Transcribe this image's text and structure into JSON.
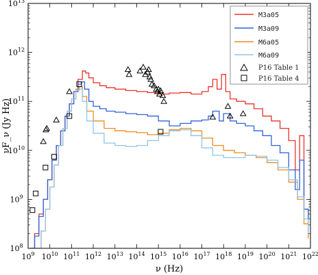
{
  "chart_data": {
    "type": "line",
    "xlabel": "ν (Hz)",
    "ylabel": "νF_ν (Jy Hz)",
    "xscale": "log",
    "yscale": "log",
    "xlim": [
      1000000000.0,
      1e+22
    ],
    "ylim": [
      100000000.0,
      10000000000000.0
    ],
    "x_tick_exponents": [
      9,
      10,
      11,
      12,
      13,
      14,
      15,
      16,
      17,
      18,
      19,
      20,
      21,
      22
    ],
    "y_tick_exponents": [
      8,
      9,
      10,
      11,
      12,
      13
    ],
    "legend_position": "top-right",
    "series": [
      {
        "name": "M3a05",
        "color": "#e8322b",
        "style": "step",
        "points": [
          [
            9.1,
            8.0
          ],
          [
            9.3,
            8.3
          ],
          [
            9.5,
            8.7
          ],
          [
            9.7,
            9.0
          ],
          [
            9.9,
            9.4
          ],
          [
            10.1,
            9.8
          ],
          [
            10.3,
            10.1
          ],
          [
            10.5,
            10.4
          ],
          [
            10.7,
            10.7
          ],
          [
            10.9,
            10.95
          ],
          [
            11.1,
            11.2
          ],
          [
            11.3,
            11.45
          ],
          [
            11.5,
            11.62
          ],
          [
            11.65,
            11.58
          ],
          [
            11.8,
            11.48
          ],
          [
            12.0,
            11.38
          ],
          [
            12.3,
            11.32
          ],
          [
            12.6,
            11.28
          ],
          [
            13.0,
            11.25
          ],
          [
            13.5,
            11.22
          ],
          [
            14.0,
            11.2
          ],
          [
            14.5,
            11.18
          ],
          [
            15.0,
            11.15
          ],
          [
            15.5,
            11.17
          ],
          [
            16.0,
            11.18
          ],
          [
            16.5,
            11.15
          ],
          [
            17.0,
            11.2
          ],
          [
            17.3,
            11.3
          ],
          [
            17.5,
            11.45
          ],
          [
            17.7,
            11.25
          ],
          [
            17.9,
            11.55
          ],
          [
            18.1,
            11.2
          ],
          [
            18.3,
            11.05
          ],
          [
            18.6,
            11.0
          ],
          [
            19.0,
            10.95
          ],
          [
            19.4,
            10.85
          ],
          [
            19.8,
            10.7
          ],
          [
            20.2,
            10.6
          ],
          [
            20.6,
            10.45
          ],
          [
            21.0,
            10.2
          ],
          [
            21.3,
            9.6
          ],
          [
            21.5,
            10.3
          ],
          [
            21.7,
            8.8
          ],
          [
            21.9,
            8.3
          ]
        ]
      },
      {
        "name": "M3a09",
        "color": "#2f62d8",
        "style": "step",
        "points": [
          [
            9.1,
            8.0
          ],
          [
            9.3,
            8.25
          ],
          [
            9.5,
            8.65
          ],
          [
            9.7,
            9.0
          ],
          [
            9.9,
            9.4
          ],
          [
            10.1,
            9.8
          ],
          [
            10.3,
            10.1
          ],
          [
            10.5,
            10.4
          ],
          [
            10.7,
            10.7
          ],
          [
            10.9,
            10.95
          ],
          [
            11.1,
            11.2
          ],
          [
            11.3,
            11.35
          ],
          [
            11.45,
            11.4
          ],
          [
            11.6,
            11.25
          ],
          [
            11.8,
            11.0
          ],
          [
            12.0,
            10.9
          ],
          [
            12.3,
            10.85
          ],
          [
            12.6,
            10.8
          ],
          [
            13.0,
            10.78
          ],
          [
            13.5,
            10.75
          ],
          [
            14.0,
            10.73
          ],
          [
            14.5,
            10.7
          ],
          [
            15.0,
            10.6
          ],
          [
            15.5,
            10.5
          ],
          [
            16.0,
            10.55
          ],
          [
            16.5,
            10.6
          ],
          [
            17.0,
            10.62
          ],
          [
            17.3,
            10.7
          ],
          [
            17.5,
            10.8
          ],
          [
            17.8,
            10.6
          ],
          [
            18.0,
            10.75
          ],
          [
            18.3,
            10.6
          ],
          [
            18.6,
            10.55
          ],
          [
            19.0,
            10.5
          ],
          [
            19.4,
            10.4
          ],
          [
            19.8,
            10.3
          ],
          [
            20.2,
            10.1
          ],
          [
            20.6,
            9.95
          ],
          [
            21.0,
            9.6
          ],
          [
            21.3,
            9.2
          ],
          [
            21.5,
            9.8
          ],
          [
            21.7,
            8.8
          ],
          [
            21.9,
            8.4
          ]
        ]
      },
      {
        "name": "M6a05",
        "color": "#f28a1f",
        "style": "step",
        "points": [
          [
            9.4,
            8.0
          ],
          [
            9.6,
            8.35
          ],
          [
            9.8,
            8.8
          ],
          [
            10.0,
            9.25
          ],
          [
            10.2,
            9.7
          ],
          [
            10.4,
            10.1
          ],
          [
            10.6,
            10.45
          ],
          [
            10.8,
            10.8
          ],
          [
            11.0,
            11.05
          ],
          [
            11.2,
            11.25
          ],
          [
            11.35,
            11.3
          ],
          [
            11.5,
            11.1
          ],
          [
            11.7,
            10.8
          ],
          [
            12.0,
            10.6
          ],
          [
            12.5,
            10.45
          ],
          [
            13.0,
            10.4
          ],
          [
            13.5,
            10.38
          ],
          [
            14.0,
            10.36
          ],
          [
            14.5,
            10.32
          ],
          [
            15.0,
            10.35
          ],
          [
            15.5,
            10.42
          ],
          [
            16.0,
            10.45
          ],
          [
            16.5,
            10.4
          ],
          [
            17.0,
            10.25
          ],
          [
            17.5,
            10.1
          ],
          [
            18.0,
            10.0
          ],
          [
            18.5,
            9.95
          ],
          [
            19.0,
            9.9
          ],
          [
            19.5,
            9.85
          ],
          [
            20.0,
            9.75
          ],
          [
            20.5,
            9.6
          ],
          [
            21.0,
            9.35
          ],
          [
            21.4,
            9.0
          ],
          [
            21.7,
            8.5
          ],
          [
            21.9,
            8.2
          ]
        ]
      },
      {
        "name": "M6a09",
        "color": "#8fc4e8",
        "style": "step",
        "points": [
          [
            9.4,
            8.0
          ],
          [
            9.6,
            8.35
          ],
          [
            9.8,
            8.8
          ],
          [
            10.0,
            9.25
          ],
          [
            10.2,
            9.7
          ],
          [
            10.4,
            10.1
          ],
          [
            10.6,
            10.45
          ],
          [
            10.8,
            10.8
          ],
          [
            11.0,
            11.05
          ],
          [
            11.2,
            11.22
          ],
          [
            11.35,
            11.25
          ],
          [
            11.5,
            11.0
          ],
          [
            11.7,
            10.6
          ],
          [
            12.0,
            10.35
          ],
          [
            12.5,
            10.15
          ],
          [
            13.0,
            10.1
          ],
          [
            13.5,
            10.08
          ],
          [
            14.0,
            10.1
          ],
          [
            14.5,
            10.2
          ],
          [
            15.0,
            10.3
          ],
          [
            15.5,
            10.4
          ],
          [
            16.0,
            10.42
          ],
          [
            16.5,
            10.3
          ],
          [
            17.0,
            10.05
          ],
          [
            17.5,
            9.9
          ],
          [
            18.0,
            9.85
          ],
          [
            18.5,
            9.85
          ],
          [
            19.0,
            9.9
          ],
          [
            19.5,
            9.88
          ],
          [
            20.0,
            9.8
          ],
          [
            20.5,
            9.65
          ],
          [
            21.0,
            9.4
          ],
          [
            21.4,
            9.05
          ],
          [
            21.7,
            8.6
          ],
          [
            21.9,
            8.3
          ]
        ]
      }
    ],
    "markers": [
      {
        "name": "P16 Table 1",
        "symbol": "triangle",
        "points": [
          [
            9.7,
            10.18
          ],
          [
            9.82,
            10.42
          ],
          [
            9.86,
            10.45
          ],
          [
            10.3,
            10.62
          ],
          [
            10.9,
            11.2
          ],
          [
            13.6,
            11.65
          ],
          [
            13.65,
            11.55
          ],
          [
            14.15,
            11.62
          ],
          [
            14.3,
            11.7
          ],
          [
            14.4,
            11.55
          ],
          [
            14.5,
            11.6
          ],
          [
            14.55,
            11.65
          ],
          [
            14.6,
            11.5
          ],
          [
            14.65,
            11.45
          ],
          [
            14.7,
            11.35
          ],
          [
            14.8,
            11.32
          ],
          [
            14.9,
            11.25
          ],
          [
            14.95,
            11.2
          ],
          [
            15.0,
            11.25
          ],
          [
            15.05,
            11.15
          ],
          [
            15.1,
            11.22
          ],
          [
            15.2,
            11.12
          ],
          [
            15.25,
            11.0
          ],
          [
            17.5,
            10.68
          ],
          [
            18.2,
            10.9
          ],
          [
            18.3,
            10.7
          ],
          [
            18.9,
            10.75
          ]
        ]
      },
      {
        "name": "P16 Table 4",
        "symbol": "square",
        "points": [
          [
            9.2,
            8.78
          ],
          [
            9.35,
            9.12
          ],
          [
            9.8,
            9.65
          ],
          [
            10.2,
            9.87
          ],
          [
            10.9,
            10.7
          ],
          [
            11.35,
            11.35
          ],
          [
            15.1,
            10.38
          ]
        ]
      }
    ]
  }
}
